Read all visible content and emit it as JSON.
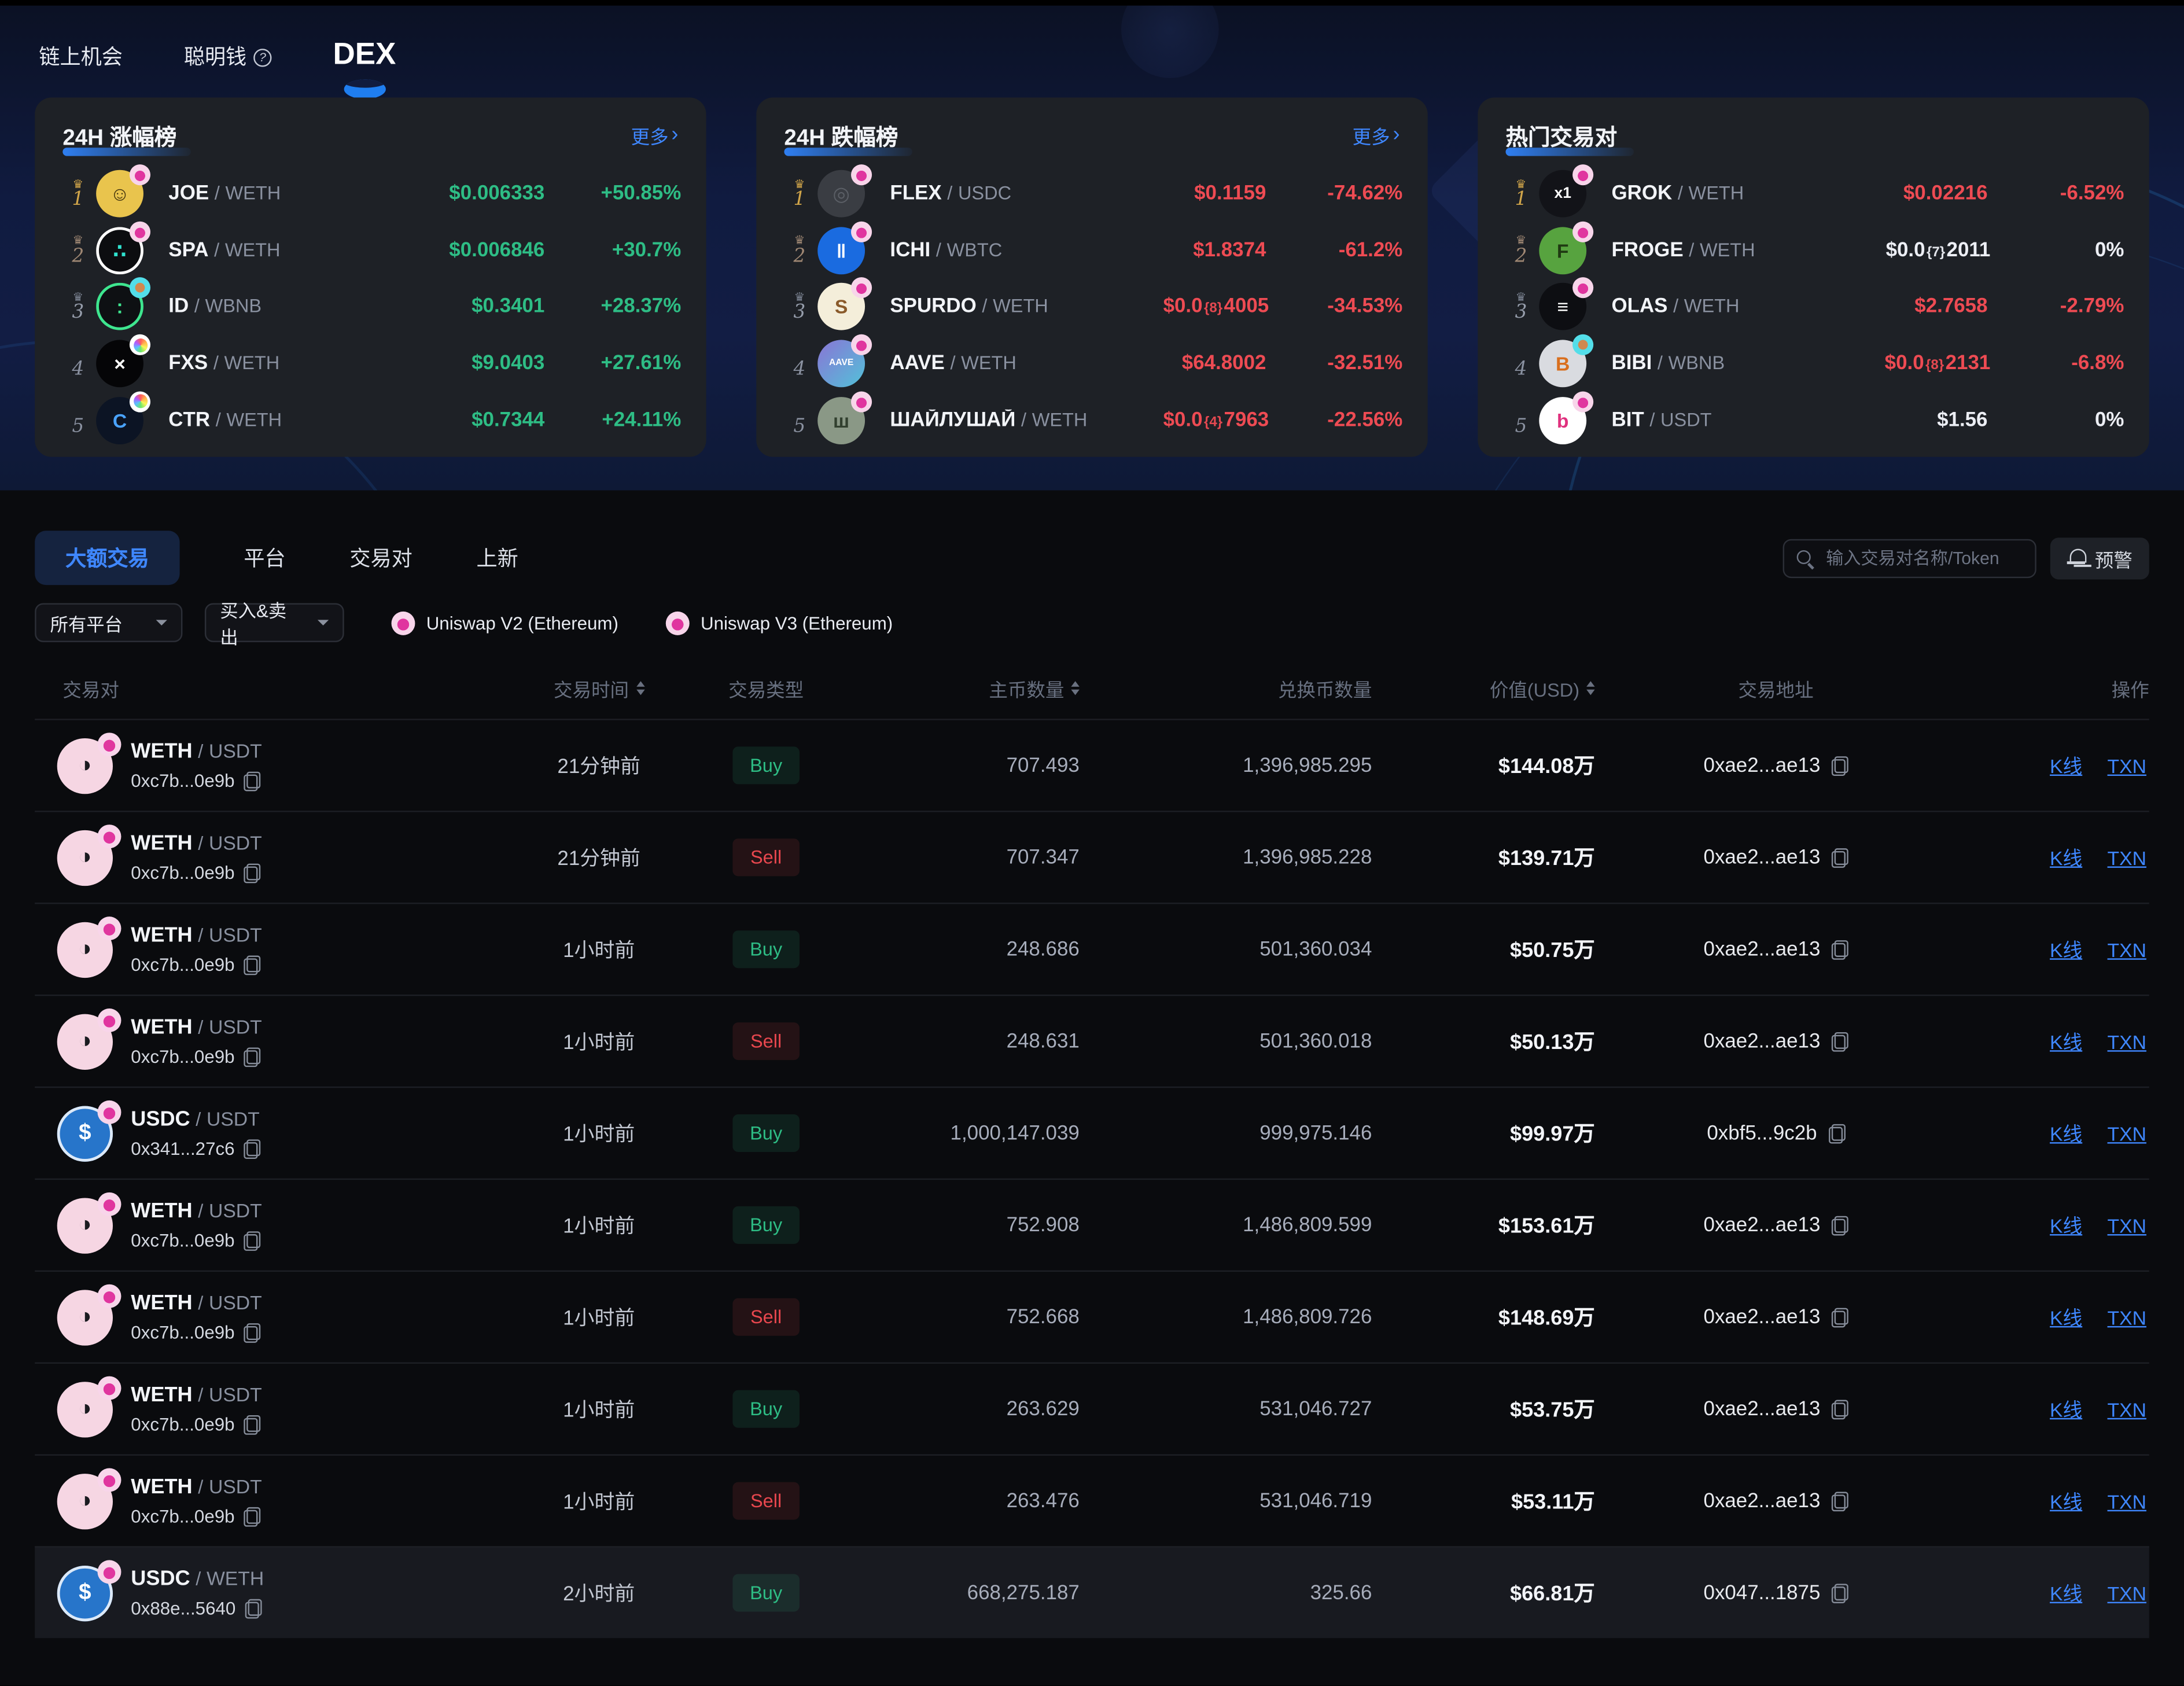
{
  "colors": {
    "accent_blue": "#3f87ff",
    "up_green": "#2ebd85",
    "down_red": "#ee4b53",
    "header_navy": "#111c3f",
    "panel_bg": "#1e2126"
  },
  "nav": {
    "items": [
      {
        "label": "链上机会",
        "active": false
      },
      {
        "label": "聪明钱",
        "active": false,
        "help_icon": "question-circle-icon"
      },
      {
        "label": "DEX",
        "active": true
      }
    ]
  },
  "panels": [
    {
      "title": "24H 涨幅榜",
      "more": "更多",
      "rows": [
        {
          "rank": "1",
          "base": "JOE",
          "quote": "WETH",
          "price": {
            "p": "$0.006333",
            "s": "",
            "t": ""
          },
          "change": "+50.85%",
          "dir": "up",
          "icon": {
            "name": "joe-token-icon",
            "bg": "#e9c44d",
            "fg": "#43350f",
            "glyph": "☺",
            "badge": "uniswap"
          }
        },
        {
          "rank": "2",
          "base": "SPA",
          "quote": "WETH",
          "price": {
            "p": "$0.006846",
            "s": "",
            "t": ""
          },
          "change": "+30.7%",
          "dir": "up",
          "icon": {
            "name": "spa-token-icon",
            "bg": "#0c0d10",
            "fg": "#2fe3cf",
            "glyph": "∴",
            "badge": "uniswap",
            "border": "#ffffff"
          }
        },
        {
          "rank": "3",
          "base": "ID",
          "quote": "WBNB",
          "price": {
            "p": "$0.3401",
            "s": "",
            "t": ""
          },
          "change": "+28.37%",
          "dir": "up",
          "icon": {
            "name": "space-id-token-icon",
            "bg": "#0e1013",
            "fg": "#3ee68f",
            "glyph": ":",
            "badge": "pancake",
            "border": "#3ee68f"
          }
        },
        {
          "rank": "4",
          "base": "FXS",
          "quote": "WETH",
          "price": {
            "p": "$9.0403",
            "s": "",
            "t": ""
          },
          "change": "+27.61%",
          "dir": "up",
          "icon": {
            "name": "fxs-token-icon",
            "bg": "#050507",
            "fg": "#ffffff",
            "glyph": "×",
            "badge": "rainbow"
          }
        },
        {
          "rank": "5",
          "base": "CTR",
          "quote": "WETH",
          "price": {
            "p": "$0.7344",
            "s": "",
            "t": ""
          },
          "change": "+24.11%",
          "dir": "up",
          "icon": {
            "name": "ctr-token-icon",
            "bg": "#0c1424",
            "fg": "#4aa3ff",
            "glyph": "C",
            "badge": "rainbow"
          }
        }
      ]
    },
    {
      "title": "24H 跌幅榜",
      "more": "更多",
      "rows": [
        {
          "rank": "1",
          "base": "FLEX",
          "quote": "USDC",
          "price": {
            "p": "$0.1159",
            "s": "",
            "t": ""
          },
          "change": "-74.62%",
          "dir": "down",
          "icon": {
            "name": "flex-token-icon",
            "bg": "#3a3d43",
            "fg": "#5b5f66",
            "glyph": "◎",
            "badge": "uniswap"
          }
        },
        {
          "rank": "2",
          "base": "ICHI",
          "quote": "WBTC",
          "price": {
            "p": "$1.8374",
            "s": "",
            "t": ""
          },
          "change": "-61.2%",
          "dir": "down",
          "icon": {
            "name": "ichi-token-icon",
            "bg": "#1a6be0",
            "fg": "#ffffff",
            "glyph": "‖",
            "badge": "uniswap"
          }
        },
        {
          "rank": "3",
          "base": "SPURDO",
          "quote": "WETH",
          "price": {
            "p": "$0.0",
            "s": "{8}",
            "t": "4005"
          },
          "change": "-34.53%",
          "dir": "down",
          "icon": {
            "name": "spurdo-token-icon",
            "bg": "#f4eeda",
            "fg": "#8a5a2a",
            "glyph": "S",
            "badge": "uniswap"
          }
        },
        {
          "rank": "4",
          "base": "AAVE",
          "quote": "WETH",
          "price": {
            "p": "$64.8002",
            "s": "",
            "t": ""
          },
          "change": "-32.51%",
          "dir": "down",
          "icon": {
            "name": "aave-token-icon",
            "bg": "#8a74d6",
            "bg2": "#52c2d8",
            "fg": "#ffffff",
            "glyph": "AAVE",
            "fs": "6.5",
            "badge": "uniswap"
          }
        },
        {
          "rank": "5",
          "base": "ШАЙЛУШАЙ",
          "quote": "WETH",
          "price": {
            "p": "$0.0",
            "s": "{4}",
            "t": "7963"
          },
          "change": "-22.56%",
          "dir": "down",
          "icon": {
            "name": "smurf-cat-token-icon",
            "bg": "#8a9886",
            "fg": "#32402f",
            "glyph": "ш",
            "badge": "uniswap"
          }
        }
      ]
    },
    {
      "title": "热门交易对",
      "more": "",
      "rows": [
        {
          "rank": "1",
          "base": "GROK",
          "quote": "WETH",
          "price": {
            "p": "$0.02216",
            "s": "",
            "t": ""
          },
          "change": "-6.52%",
          "dir": "down",
          "icon": {
            "name": "grok-token-icon",
            "bg": "#121318",
            "fg": "#ffffff",
            "glyph": "x1",
            "fs": "11",
            "badge": "uniswap"
          }
        },
        {
          "rank": "2",
          "base": "FROGE",
          "quote": "WETH",
          "price": {
            "p": "$0.0",
            "s": "{7}",
            "t": "2011"
          },
          "change": "0%",
          "dir": "flat",
          "icon": {
            "name": "froge-token-icon",
            "bg": "#57a33f",
            "fg": "#1f3a12",
            "glyph": "F",
            "badge": "uniswap"
          }
        },
        {
          "rank": "3",
          "base": "OLAS",
          "quote": "WETH",
          "price": {
            "p": "$2.7658",
            "s": "",
            "t": ""
          },
          "change": "-2.79%",
          "dir": "down",
          "icon": {
            "name": "olas-token-icon",
            "bg": "#0d0e12",
            "fg": "#ffffff",
            "glyph": "≡",
            "badge": "uniswap"
          }
        },
        {
          "rank": "4",
          "base": "BIBI",
          "quote": "WBNB",
          "price": {
            "p": "$0.0",
            "s": "{8}",
            "t": "2131"
          },
          "change": "-6.8%",
          "dir": "down",
          "icon": {
            "name": "bibi-token-icon",
            "bg": "#d9dbe0",
            "fg": "#d96f1e",
            "glyph": "B",
            "badge": "pancake"
          }
        },
        {
          "rank": "5",
          "base": "BIT",
          "quote": "USDT",
          "price": {
            "p": "$1.56",
            "s": "",
            "t": ""
          },
          "change": "0%",
          "dir": "flat",
          "icon": {
            "name": "bit-token-icon",
            "bg": "#ffffff",
            "fg": "#e0317e",
            "glyph": "b",
            "badge": "uniswap"
          }
        }
      ]
    }
  ],
  "tabs": [
    {
      "label": "大额交易",
      "active": true
    },
    {
      "label": "平台",
      "active": false
    },
    {
      "label": "交易对",
      "active": false
    },
    {
      "label": "上新",
      "active": false
    }
  ],
  "search": {
    "placeholder": "输入交易对名称/Token"
  },
  "alert_button": {
    "label": "预警"
  },
  "filters": {
    "platform_select": "所有平台",
    "side_select": "买入&卖出",
    "platforms": [
      {
        "label": "Uniswap V2 (Ethereum)"
      },
      {
        "label": "Uniswap V3 (Ethereum)"
      }
    ]
  },
  "token_icons": {
    "weth": {
      "name": "weth-token-icon",
      "bg": "#f6d6e3",
      "fg": "#1a1b20",
      "glyph": "◑",
      "badge": "uniswap"
    },
    "usdc": {
      "name": "usdc-token-icon",
      "bg": "#2775ca",
      "fg": "#ffffff",
      "glyph": "$",
      "badge": "uniswap",
      "border": "#dce9f8"
    }
  },
  "table": {
    "headers": [
      {
        "label": "交易对",
        "sortable": false
      },
      {
        "label": "交易时间",
        "sortable": true
      },
      {
        "label": "交易类型",
        "sortable": false
      },
      {
        "label": "主币数量",
        "sortable": true
      },
      {
        "label": "兑换币数量",
        "sortable": false
      },
      {
        "label": "价值(USD)",
        "sortable": true
      },
      {
        "label": "交易地址",
        "sortable": false
      },
      {
        "label": "操作",
        "sortable": false
      }
    ],
    "action_labels": {
      "kline": "K线",
      "txn": "TXN"
    },
    "rows": [
      {
        "base": "WETH",
        "quote": "USDT",
        "pair_address": "0xc7b...0e9b",
        "time": "21分钟前",
        "type": "Buy",
        "amount_base": "707.493",
        "amount_quote": "1,396,985.295",
        "value": "$144.08万",
        "tx_address": "0xae2...ae13",
        "icon": "weth",
        "highlighted": false
      },
      {
        "base": "WETH",
        "quote": "USDT",
        "pair_address": "0xc7b...0e9b",
        "time": "21分钟前",
        "type": "Sell",
        "amount_base": "707.347",
        "amount_quote": "1,396,985.228",
        "value": "$139.71万",
        "tx_address": "0xae2...ae13",
        "icon": "weth",
        "highlighted": false
      },
      {
        "base": "WETH",
        "quote": "USDT",
        "pair_address": "0xc7b...0e9b",
        "time": "1小时前",
        "type": "Buy",
        "amount_base": "248.686",
        "amount_quote": "501,360.034",
        "value": "$50.75万",
        "tx_address": "0xae2...ae13",
        "icon": "weth",
        "highlighted": false
      },
      {
        "base": "WETH",
        "quote": "USDT",
        "pair_address": "0xc7b...0e9b",
        "time": "1小时前",
        "type": "Sell",
        "amount_base": "248.631",
        "amount_quote": "501,360.018",
        "value": "$50.13万",
        "tx_address": "0xae2...ae13",
        "icon": "weth",
        "highlighted": false
      },
      {
        "base": "USDC",
        "quote": "USDT",
        "pair_address": "0x341...27c6",
        "time": "1小时前",
        "type": "Buy",
        "amount_base": "1,000,147.039",
        "amount_quote": "999,975.146",
        "value": "$99.97万",
        "tx_address": "0xbf5...9c2b",
        "icon": "usdc",
        "highlighted": false
      },
      {
        "base": "WETH",
        "quote": "USDT",
        "pair_address": "0xc7b...0e9b",
        "time": "1小时前",
        "type": "Buy",
        "amount_base": "752.908",
        "amount_quote": "1,486,809.599",
        "value": "$153.61万",
        "tx_address": "0xae2...ae13",
        "icon": "weth",
        "highlighted": false
      },
      {
        "base": "WETH",
        "quote": "USDT",
        "pair_address": "0xc7b...0e9b",
        "time": "1小时前",
        "type": "Sell",
        "amount_base": "752.668",
        "amount_quote": "1,486,809.726",
        "value": "$148.69万",
        "tx_address": "0xae2...ae13",
        "icon": "weth",
        "highlighted": false
      },
      {
        "base": "WETH",
        "quote": "USDT",
        "pair_address": "0xc7b...0e9b",
        "time": "1小时前",
        "type": "Buy",
        "amount_base": "263.629",
        "amount_quote": "531,046.727",
        "value": "$53.75万",
        "tx_address": "0xae2...ae13",
        "icon": "weth",
        "highlighted": false
      },
      {
        "base": "WETH",
        "quote": "USDT",
        "pair_address": "0xc7b...0e9b",
        "time": "1小时前",
        "type": "Sell",
        "amount_base": "263.476",
        "amount_quote": "531,046.719",
        "value": "$53.11万",
        "tx_address": "0xae2...ae13",
        "icon": "weth",
        "highlighted": false
      },
      {
        "base": "USDC",
        "quote": "WETH",
        "pair_address": "0x88e...5640",
        "time": "2小时前",
        "type": "Buy",
        "amount_base": "668,275.187",
        "amount_quote": "325.66",
        "value": "$66.81万",
        "tx_address": "0x047...1875",
        "icon": "usdc",
        "highlighted": true
      }
    ]
  }
}
